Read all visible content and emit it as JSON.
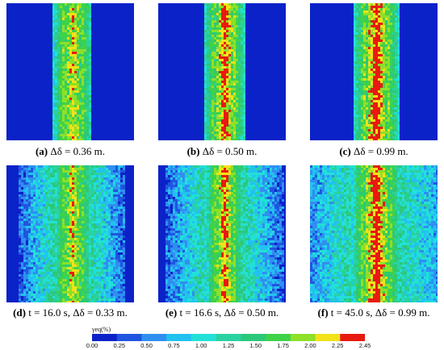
{
  "panels": [
    {
      "id": "a",
      "label": "(a)",
      "rest": " Δδ = 0.36 m.",
      "band_width": 0.13,
      "intensity": 0.55,
      "spread": 0.0
    },
    {
      "id": "b",
      "label": "(b)",
      "rest": " Δδ = 0.50 m.",
      "band_width": 0.15,
      "intensity": 0.85,
      "spread": 0.0
    },
    {
      "id": "c",
      "label": "(c)",
      "rest": " Δδ = 0.99 m.",
      "band_width": 0.18,
      "intensity": 1.0,
      "spread": 0.0
    },
    {
      "id": "d",
      "label": "(d)",
      "rest": " t = 16.0 s, Δδ = 0.33 m.",
      "band_width": 0.12,
      "intensity": 0.55,
      "spread": 0.6
    },
    {
      "id": "e",
      "label": "(e)",
      "rest": " t = 16.6 s, Δδ = 0.50 m.",
      "band_width": 0.13,
      "intensity": 0.8,
      "spread": 0.7
    },
    {
      "id": "f",
      "label": "(f)",
      "rest": " t = 45.0 s, Δδ = 0.99 m.",
      "band_width": 0.2,
      "intensity": 1.0,
      "spread": 1.0
    }
  ],
  "legend": {
    "title": "γeq(%)",
    "ticks": [
      "0.00",
      "0.25",
      "0.50",
      "0.75",
      "1.00",
      "1.25",
      "1.50",
      "1.75",
      "2.00",
      "2.25",
      "2.45"
    ],
    "colors": [
      "#0b22c8",
      "#1f55e0",
      "#2f8ff0",
      "#22c2f0",
      "#22e0d8",
      "#2ad2a0",
      "#2cc87a",
      "#3ed24a",
      "#8ee028",
      "#f2e21a",
      "#e81a10"
    ]
  }
}
